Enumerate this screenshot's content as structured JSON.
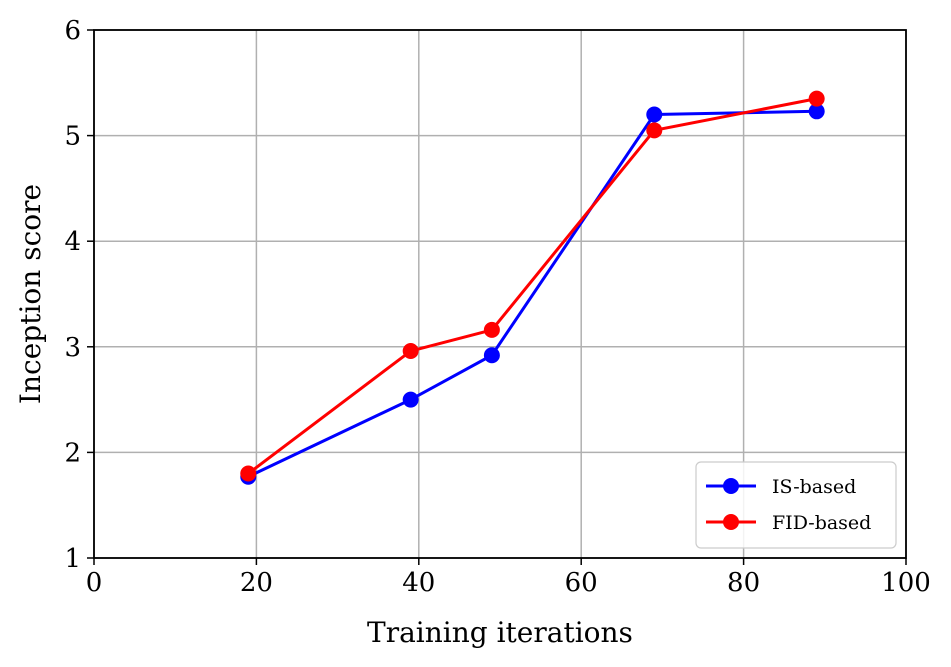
{
  "chart_data": {
    "type": "line",
    "title": "",
    "xlabel": "Training iterations",
    "ylabel": "Inception score",
    "xlim": [
      0,
      100
    ],
    "ylim": [
      1,
      6
    ],
    "xticks": [
      0,
      20,
      40,
      60,
      80,
      100
    ],
    "yticks": [
      1,
      2,
      3,
      4,
      5,
      6
    ],
    "grid": true,
    "legend_position": "bottom-right",
    "series": [
      {
        "name": "IS-based",
        "color": "#0000ff",
        "x": [
          19,
          39,
          49,
          69,
          89
        ],
        "y": [
          1.77,
          2.5,
          2.92,
          5.2,
          5.23
        ]
      },
      {
        "name": "FID-based",
        "color": "#ff0000",
        "x": [
          19,
          39,
          49,
          69,
          89
        ],
        "y": [
          1.8,
          2.96,
          3.16,
          5.05,
          5.35
        ]
      }
    ]
  }
}
